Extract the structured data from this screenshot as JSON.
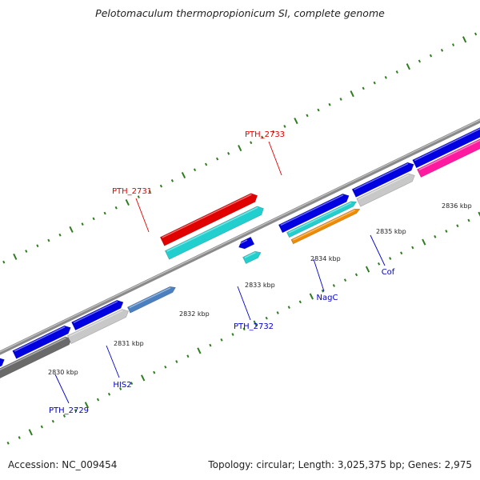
{
  "title": "Pelotomaculum thermopropionicum SI, complete genome",
  "footer": {
    "accession": "Accession: NC_009454",
    "topology": "Topology: circular; Length: 3,025,375 bp; Genes: 2,975"
  },
  "kbp_labels": [
    "2830 kbp",
    "2831 kbp",
    "2832 kbp",
    "2833 kbp",
    "2834 kbp",
    "2835 kbp",
    "2836 kbp"
  ],
  "gene_labels": [
    {
      "text": "PTH_2731",
      "color": "#e00000"
    },
    {
      "text": "PTH_2733",
      "color": "#e00000"
    },
    {
      "text": "PTH_2732",
      "color": "#0000c8"
    },
    {
      "text": "NagC",
      "color": "#0000c8"
    },
    {
      "text": "Cof",
      "color": "#0000c8"
    },
    {
      "text": "HIS2",
      "color": "#0000c8"
    },
    {
      "text": "PTH_2729",
      "color": "#0000c8"
    }
  ],
  "colors": {
    "backbone": "#8a8a8a",
    "tick": "#2e7d1e",
    "forward_cds": "#0000e0",
    "reverse_cds": "#e00000",
    "cyan": "#22cfcf",
    "grey": "#c8c8c8",
    "dark_grey": "#6a6a6a",
    "orange": "#f08a00",
    "pink": "#ff1aa0",
    "steel": "#4a7fc0"
  }
}
